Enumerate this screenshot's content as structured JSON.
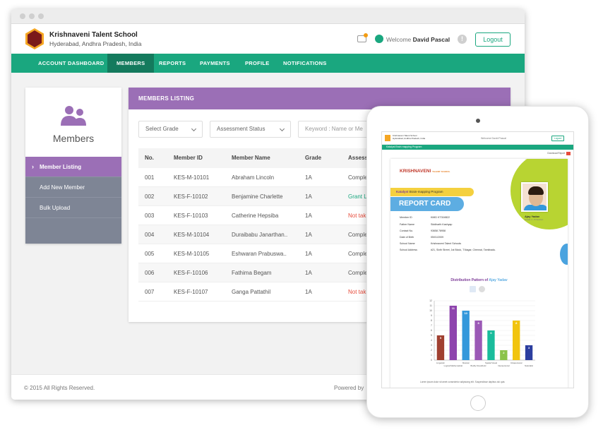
{
  "header": {
    "school_name": "Krishnaveni Talent School",
    "school_location": "Hyderabad, Andhra Pradesh, India",
    "welcome_prefix": "Welcome",
    "user_name": "David Pascal",
    "help": "!",
    "logout": "Logout"
  },
  "nav": [
    "ACCOUNT DASHBOARD",
    "MEMBERS",
    "REPORTS",
    "PAYMENTS",
    "PROFILE",
    "NOTIFICATIONS"
  ],
  "sidebar": {
    "title": "Members",
    "items": [
      "Member Listing",
      "Add New Member",
      "Bulk Upload"
    ]
  },
  "panel": {
    "title": "MEMBERS LISTING",
    "filters": {
      "grade": "Select Grade",
      "status": "Assessment Status",
      "keyword_placeholder": "Keyword : Name or Me"
    },
    "columns": [
      "No.",
      "Member ID",
      "Member Name",
      "Grade",
      "Assess"
    ],
    "rows": [
      {
        "no": "001",
        "id": "KES-M-10101",
        "name": "Abraham Lincoln",
        "grade": "1A",
        "status": "Comple",
        "tone": "normal"
      },
      {
        "no": "002",
        "id": "KES-F-10102",
        "name": "Benjamine Charlette",
        "grade": "1A",
        "status": "Grant L",
        "tone": "green"
      },
      {
        "no": "003",
        "id": "KES-F-10103",
        "name": "Catherine Hepsiba",
        "grade": "1A",
        "status": "Not tak",
        "tone": "red"
      },
      {
        "no": "004",
        "id": "KES-M-10104",
        "name": "Duraibabu Janarthan..",
        "grade": "1A",
        "status": "Comple",
        "tone": "normal"
      },
      {
        "no": "005",
        "id": "KES-M-10105",
        "name": "Eshwaran Prabuswa..",
        "grade": "1A",
        "status": "Comple",
        "tone": "normal"
      },
      {
        "no": "006",
        "id": "KES-F-10106",
        "name": "Fathima Begam",
        "grade": "1A",
        "status": "Comple",
        "tone": "normal"
      },
      {
        "no": "007",
        "id": "KES-F-10107",
        "name": "Ganga Pattathil",
        "grade": "1A",
        "status": "Not tak",
        "tone": "red"
      }
    ]
  },
  "footer": {
    "copyright": "© 2015 All Rights Reserved.",
    "powered": "Powered by"
  },
  "colors": {
    "accent": "#1aa77f",
    "purple": "#9b6fb6",
    "sidebar_grey": "#7e8595"
  },
  "tablet": {
    "mini_header": {
      "school": "Krishnaveni Talent School",
      "location": "Hyderabad, Andhra Pradesh, India",
      "welcome": "Welcome David Pascal",
      "logout": "Logout",
      "nav": "Katalyst Brain mapping Program",
      "download": "Download Report"
    },
    "report": {
      "logo_text": "KRISHNAVENI",
      "logo_small": "TALENT SCHOOL",
      "program": "Brain-mapping Program",
      "program_brand": "Katalyst",
      "title": "REPORT CARD",
      "student_name": "Ajay Yadav",
      "student_grade": "Grade 4 - B Section",
      "fields": [
        {
          "label": "Member ID",
          "value": "KMID  KT304B22"
        },
        {
          "label": "Father Name",
          "value": "Siddharth Kashyap"
        },
        {
          "label": "Contact No.",
          "value": "93658 78958"
        },
        {
          "label": "Date of Birth",
          "value": "05/01/2009"
        },
        {
          "label": "School Name",
          "value": "Krishnaveni Talent Schools"
        },
        {
          "label": "School Address",
          "value": "#21, Sixth Street, 1st Block, T.Nagar, Chennai, Tamilnadu."
        }
      ],
      "dist_prefix": "Distribution Pattern of",
      "dist_name": "Ajay Yadav",
      "lorem": "Lorem ipsum dolor sit amet consectetur adipiscing elit. Suspendisse dapibus dui quis"
    }
  },
  "chart_data": {
    "type": "bar",
    "title": "Distribution Pattern of Ajay Yadav",
    "categories": [
      "Linguistic",
      "Logical Mathematical",
      "Musical",
      "Bodily Kinesthetic",
      "Spatial Visual",
      "Interpersonal",
      "Intrapersonal",
      "Naturalist"
    ],
    "values": [
      5,
      11,
      10,
      8,
      6,
      2,
      8,
      3
    ],
    "colors": [
      "#a04030",
      "#8e44ad",
      "#3498db",
      "#9b59b6",
      "#1abc9c",
      "#8bc34a",
      "#f1c40f",
      "#2c3e9f"
    ],
    "ylim": [
      0,
      12
    ],
    "yticks": [
      0,
      1,
      2,
      3,
      4,
      5,
      6,
      7,
      8,
      9,
      10,
      11,
      12
    ],
    "grid": true
  }
}
